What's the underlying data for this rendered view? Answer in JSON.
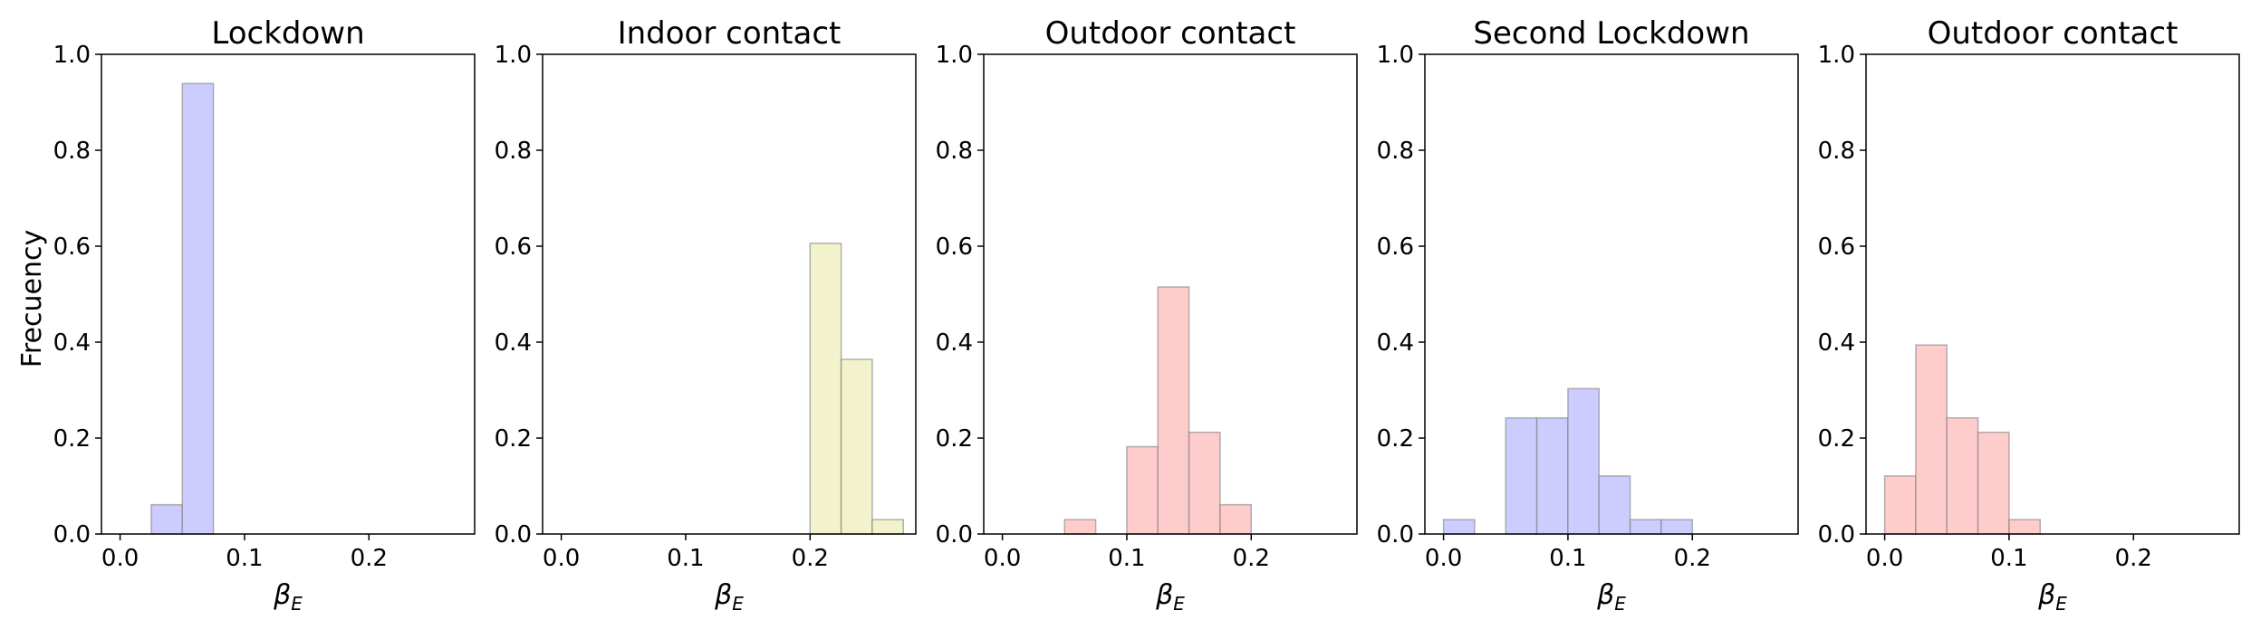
{
  "figure": {
    "ylabel": "Frecuency",
    "xlabel_symbol": "β",
    "xlabel_subscript": "E"
  },
  "chart_data": [
    {
      "type": "bar",
      "title": "Lockdown",
      "color": "#ccccff",
      "bin_width": 0.025,
      "xlim": [
        -0.015,
        0.285
      ],
      "ylim": [
        0,
        1.0
      ],
      "xticks": [
        0.0,
        0.1,
        0.2
      ],
      "xtick_labels": [
        "0.0",
        "0.1",
        "0.2"
      ],
      "yticks": [
        0.0,
        0.2,
        0.4,
        0.6,
        0.8,
        1.0
      ],
      "ytick_labels": [
        "0.0",
        "0.2",
        "0.4",
        "0.6",
        "0.8",
        "1.0"
      ],
      "bins": [
        {
          "x0": 0.025,
          "value": 0.061
        },
        {
          "x0": 0.05,
          "value": 0.939
        }
      ]
    },
    {
      "type": "bar",
      "title": "Indoor contact",
      "color": "#f2f2cc",
      "bin_width": 0.025,
      "xlim": [
        -0.015,
        0.285
      ],
      "ylim": [
        0,
        1.0
      ],
      "xticks": [
        0.0,
        0.1,
        0.2
      ],
      "xtick_labels": [
        "0.0",
        "0.1",
        "0.2"
      ],
      "yticks": [
        0.0,
        0.2,
        0.4,
        0.6,
        0.8,
        1.0
      ],
      "ytick_labels": [
        "0.0",
        "0.2",
        "0.4",
        "0.6",
        "0.8",
        "1.0"
      ],
      "bins": [
        {
          "x0": 0.2,
          "value": 0.606
        },
        {
          "x0": 0.225,
          "value": 0.364
        },
        {
          "x0": 0.25,
          "value": 0.03
        }
      ]
    },
    {
      "type": "bar",
      "title": "Outdoor contact",
      "color": "#ffcccc",
      "bin_width": 0.025,
      "xlim": [
        -0.015,
        0.285
      ],
      "ylim": [
        0,
        1.0
      ],
      "xticks": [
        0.0,
        0.1,
        0.2
      ],
      "xtick_labels": [
        "0.0",
        "0.1",
        "0.2"
      ],
      "yticks": [
        0.0,
        0.2,
        0.4,
        0.6,
        0.8,
        1.0
      ],
      "ytick_labels": [
        "0.0",
        "0.2",
        "0.4",
        "0.6",
        "0.8",
        "1.0"
      ],
      "bins": [
        {
          "x0": 0.05,
          "value": 0.03
        },
        {
          "x0": 0.1,
          "value": 0.182
        },
        {
          "x0": 0.125,
          "value": 0.515
        },
        {
          "x0": 0.15,
          "value": 0.212
        },
        {
          "x0": 0.175,
          "value": 0.061
        }
      ]
    },
    {
      "type": "bar",
      "title": "Second Lockdown",
      "color": "#ccccff",
      "bin_width": 0.025,
      "xlim": [
        -0.015,
        0.285
      ],
      "ylim": [
        0,
        1.0
      ],
      "xticks": [
        0.0,
        0.1,
        0.2
      ],
      "xtick_labels": [
        "0.0",
        "0.1",
        "0.2"
      ],
      "yticks": [
        0.0,
        0.2,
        0.4,
        0.6,
        0.8,
        1.0
      ],
      "ytick_labels": [
        "0.0",
        "0.2",
        "0.4",
        "0.6",
        "0.8",
        "1.0"
      ],
      "bins": [
        {
          "x0": 0.0,
          "value": 0.03
        },
        {
          "x0": 0.05,
          "value": 0.242
        },
        {
          "x0": 0.075,
          "value": 0.242
        },
        {
          "x0": 0.1,
          "value": 0.303
        },
        {
          "x0": 0.125,
          "value": 0.121
        },
        {
          "x0": 0.15,
          "value": 0.03
        },
        {
          "x0": 0.175,
          "value": 0.03
        }
      ]
    },
    {
      "type": "bar",
      "title": "Outdoor contact",
      "color": "#ffcccc",
      "bin_width": 0.025,
      "xlim": [
        -0.015,
        0.285
      ],
      "ylim": [
        0,
        1.0
      ],
      "xticks": [
        0.0,
        0.1,
        0.2
      ],
      "xtick_labels": [
        "0.0",
        "0.1",
        "0.2"
      ],
      "yticks": [
        0.0,
        0.2,
        0.4,
        0.6,
        0.8,
        1.0
      ],
      "ytick_labels": [
        "0.0",
        "0.2",
        "0.4",
        "0.6",
        "0.8",
        "1.0"
      ],
      "bins": [
        {
          "x0": 0.0,
          "value": 0.121
        },
        {
          "x0": 0.025,
          "value": 0.394
        },
        {
          "x0": 0.05,
          "value": 0.242
        },
        {
          "x0": 0.075,
          "value": 0.212
        },
        {
          "x0": 0.1,
          "value": 0.03
        }
      ]
    }
  ]
}
